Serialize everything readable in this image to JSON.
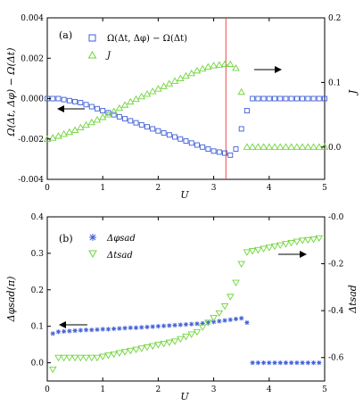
{
  "chart_data": [
    {
      "type": "scatter",
      "panel_label": "(a)",
      "xlabel": "U",
      "ylabel_left": "Ω(Δt, Δφ) − Ω(Δt)",
      "ylabel_right": "J",
      "xlim": [
        0,
        5
      ],
      "ylim_left": [
        -0.004,
        0.004
      ],
      "ylim_right": [
        -0.05,
        0.2
      ],
      "xticks": [
        "0",
        "1",
        "2",
        "3",
        "4",
        "5"
      ],
      "yticks_left": [
        "-0.004",
        "-0.002",
        "0.000",
        "0.002",
        "0.004"
      ],
      "yticks_right": [
        "0.0",
        "0.1",
        "0.2"
      ],
      "vline_x": 3.22,
      "vline_color": "#e8484f",
      "series": [
        {
          "name": "Ω(Δt, Δφ) − Ω(Δt)",
          "axis": "left",
          "marker": "square",
          "color": "#3f5fd6",
          "x": [
            0.0,
            0.1,
            0.2,
            0.3,
            0.4,
            0.5,
            0.6,
            0.7,
            0.8,
            0.9,
            1.0,
            1.1,
            1.2,
            1.3,
            1.4,
            1.5,
            1.6,
            1.7,
            1.8,
            1.9,
            2.0,
            2.1,
            2.2,
            2.3,
            2.4,
            2.5,
            2.6,
            2.7,
            2.8,
            2.9,
            3.0,
            3.1,
            3.2,
            3.3,
            3.4,
            3.5,
            3.6,
            3.7,
            3.8,
            3.9,
            4.0,
            4.1,
            4.2,
            4.3,
            4.4,
            4.5,
            4.6,
            4.7,
            4.8,
            4.9,
            5.0
          ],
          "y": [
            0.0,
            0.0,
            0.0,
            -5e-05,
            -0.0001,
            -0.00015,
            -0.0002,
            -0.0003,
            -0.0004,
            -0.0005,
            -0.0006,
            -0.0007,
            -0.0008,
            -0.0009,
            -0.001,
            -0.0011,
            -0.0012,
            -0.0013,
            -0.0014,
            -0.0015,
            -0.0016,
            -0.0017,
            -0.0018,
            -0.0019,
            -0.002,
            -0.0021,
            -0.0022,
            -0.0023,
            -0.0024,
            -0.0025,
            -0.0026,
            -0.00265,
            -0.0027,
            -0.0028,
            -0.0025,
            -0.0015,
            -0.0006,
            0.0,
            0.0,
            0.0,
            0.0,
            0.0,
            0.0,
            0.0,
            0.0,
            0.0,
            0.0,
            0.0,
            0.0,
            0.0,
            0.0
          ]
        },
        {
          "name": "J",
          "axis": "right",
          "marker": "triangle-up",
          "color": "#6fd43a",
          "x": [
            0.0,
            0.1,
            0.2,
            0.3,
            0.4,
            0.5,
            0.6,
            0.7,
            0.8,
            0.9,
            1.0,
            1.1,
            1.2,
            1.3,
            1.4,
            1.5,
            1.6,
            1.7,
            1.8,
            1.9,
            2.0,
            2.1,
            2.2,
            2.3,
            2.4,
            2.5,
            2.6,
            2.7,
            2.8,
            2.9,
            3.0,
            3.1,
            3.2,
            3.3,
            3.4,
            3.5,
            3.6,
            3.7,
            3.8,
            3.9,
            4.0,
            4.1,
            4.2,
            4.3,
            4.4,
            4.5,
            4.6,
            4.7,
            4.8,
            4.9,
            5.0
          ],
          "y": [
            0.012,
            0.014,
            0.017,
            0.02,
            0.023,
            0.026,
            0.03,
            0.034,
            0.038,
            0.042,
            0.046,
            0.05,
            0.055,
            0.06,
            0.065,
            0.07,
            0.074,
            0.078,
            0.082,
            0.086,
            0.09,
            0.094,
            0.098,
            0.102,
            0.106,
            0.11,
            0.114,
            0.118,
            0.121,
            0.124,
            0.126,
            0.127,
            0.128,
            0.128,
            0.122,
            0.085,
            0.0,
            0.0,
            0.0,
            0.0,
            0.0,
            0.0,
            0.0,
            0.0,
            0.0,
            0.0,
            0.0,
            0.0,
            0.0,
            0.0,
            0.0
          ]
        }
      ]
    },
    {
      "type": "scatter",
      "panel_label": "(b)",
      "xlabel": "U",
      "ylabel_left": "Δφsad(π)",
      "ylabel_right": "Δtsad",
      "xlim": [
        0,
        5
      ],
      "ylim_left": [
        -0.05,
        0.4
      ],
      "ylim_right": [
        -0.7,
        0.0
      ],
      "xticks": [
        "0",
        "1",
        "2",
        "3",
        "4",
        "5"
      ],
      "yticks_left": [
        "0.0",
        "0.1",
        "0.2",
        "0.3",
        "0.4"
      ],
      "yticks_right": [
        "-0.6",
        "-0.4",
        "-0.2",
        "-0.0"
      ],
      "series": [
        {
          "name": "Δφsad",
          "axis": "left",
          "marker": "star",
          "color": "#3f5fd6",
          "x": [
            0.1,
            0.2,
            0.3,
            0.4,
            0.5,
            0.6,
            0.7,
            0.8,
            0.9,
            1.0,
            1.1,
            1.2,
            1.3,
            1.4,
            1.5,
            1.6,
            1.7,
            1.8,
            1.9,
            2.0,
            2.1,
            2.2,
            2.3,
            2.4,
            2.5,
            2.6,
            2.7,
            2.8,
            2.9,
            3.0,
            3.1,
            3.2,
            3.3,
            3.4,
            3.5,
            3.6,
            3.7,
            3.8,
            3.9,
            4.0,
            4.1,
            4.2,
            4.3,
            4.4,
            4.5,
            4.6,
            4.7,
            4.8,
            4.9
          ],
          "y": [
            0.08,
            0.085,
            0.086,
            0.087,
            0.088,
            0.089,
            0.09,
            0.09,
            0.091,
            0.092,
            0.092,
            0.093,
            0.094,
            0.095,
            0.096,
            0.096,
            0.097,
            0.098,
            0.099,
            0.1,
            0.101,
            0.102,
            0.103,
            0.104,
            0.105,
            0.106,
            0.107,
            0.108,
            0.11,
            0.112,
            0.114,
            0.116,
            0.118,
            0.12,
            0.122,
            0.11,
            0.0,
            0.0,
            0.0,
            0.0,
            0.0,
            0.0,
            0.0,
            0.0,
            0.0,
            0.0,
            0.0,
            0.0,
            0.0
          ]
        },
        {
          "name": "Δtsad",
          "axis": "right",
          "marker": "triangle-down",
          "color": "#6fd43a",
          "x": [
            0.1,
            0.2,
            0.3,
            0.4,
            0.5,
            0.6,
            0.7,
            0.8,
            0.9,
            1.0,
            1.1,
            1.2,
            1.3,
            1.4,
            1.5,
            1.6,
            1.7,
            1.8,
            1.9,
            2.0,
            2.1,
            2.2,
            2.3,
            2.4,
            2.5,
            2.6,
            2.7,
            2.8,
            2.9,
            3.0,
            3.1,
            3.2,
            3.3,
            3.4,
            3.5,
            3.6,
            3.7,
            3.8,
            3.9,
            4.0,
            4.1,
            4.2,
            4.3,
            4.4,
            4.5,
            4.6,
            4.7,
            4.8,
            4.9
          ],
          "y": [
            -0.65,
            -0.6,
            -0.6,
            -0.6,
            -0.6,
            -0.6,
            -0.6,
            -0.6,
            -0.6,
            -0.595,
            -0.59,
            -0.585,
            -0.58,
            -0.575,
            -0.57,
            -0.565,
            -0.56,
            -0.555,
            -0.55,
            -0.545,
            -0.54,
            -0.535,
            -0.53,
            -0.52,
            -0.51,
            -0.5,
            -0.49,
            -0.47,
            -0.45,
            -0.43,
            -0.41,
            -0.38,
            -0.34,
            -0.28,
            -0.2,
            -0.15,
            -0.145,
            -0.14,
            -0.135,
            -0.13,
            -0.125,
            -0.12,
            -0.115,
            -0.11,
            -0.105,
            -0.1,
            -0.098,
            -0.095,
            -0.09
          ]
        }
      ]
    }
  ]
}
